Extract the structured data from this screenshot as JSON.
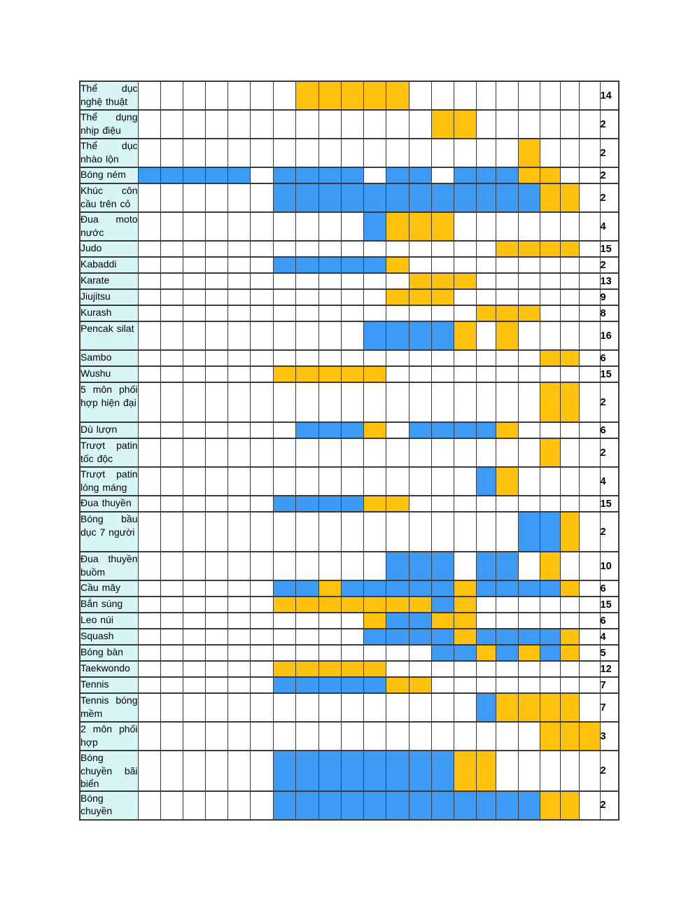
{
  "colors": {
    "blue": "#3e9bf5",
    "yellow": "#ffc20d",
    "label_bg": "#d9f6f6",
    "border": "#3b3b3b",
    "page_bg": "#ffffff"
  },
  "table": {
    "day_columns": 21,
    "pattern_legend": {
      "b": "blue",
      "y": "yellow",
      ".": "empty"
    },
    "rows": [
      {
        "label": "Thể dục nghệ thuật",
        "count": "14",
        "lines": 2,
        "pattern": ".......yyyyy........."
      },
      {
        "label": "Thể dụng nhịp điệu",
        "count": "2",
        "lines": 2,
        "pattern": ".............yy......"
      },
      {
        "label": "Thể dục nhào lộn",
        "count": "2",
        "lines": 2,
        "pattern": ".................y..."
      },
      {
        "label": "Bóng ném",
        "count": "2",
        "lines": 1,
        "pattern": "bbbbb.bbbb.bb.bbbyy.."
      },
      {
        "label": "Khúc côn cầu trên cỏ",
        "count": "2",
        "lines": 2,
        "pattern": "......bbbbbbbbbbbbyy."
      },
      {
        "label": "Đua moto nước",
        "count": "4",
        "lines": 2,
        "pattern": "..........byyy......."
      },
      {
        "label": "Judo",
        "count": "15",
        "lines": 1,
        "pattern": "................yyyy."
      },
      {
        "label": "Kabaddi",
        "count": "2",
        "lines": 1,
        "pattern": "......bbbbby........."
      },
      {
        "label": "Karate",
        "count": "13",
        "lines": 1,
        "pattern": "............yyy......"
      },
      {
        "label": "Jiujitsu",
        "count": "9",
        "lines": 1,
        "pattern": "...........yyy......."
      },
      {
        "label": "Kurash",
        "count": "8",
        "lines": 1,
        "pattern": "...............yyy..."
      },
      {
        "label": "Pencak silat",
        "count": "16",
        "lines": 2,
        "pattern": "..........bbbby.y...."
      },
      {
        "label": "Sambo",
        "count": "6",
        "lines": 1,
        "pattern": "..................yy."
      },
      {
        "label": "Wushu",
        "count": "15",
        "lines": 1,
        "pattern": "......yyyyy.........."
      },
      {
        "label": "5 môn phối hợp hiện đại",
        "count": "2",
        "lines": 3,
        "pattern": "..................yy."
      },
      {
        "label": "Dù lượn",
        "count": "6",
        "lines": 1,
        "pattern": ".......bbby.bbbby...."
      },
      {
        "label": "Trượt patin tốc độc",
        "count": "2",
        "lines": 2,
        "pattern": "..................y.."
      },
      {
        "label": "Trượt patin lòng máng",
        "count": "4",
        "lines": 2,
        "pattern": "...............by...."
      },
      {
        "label": "Đua thuyền",
        "count": "15",
        "lines": 1,
        "pattern": "......bbbbyy........."
      },
      {
        "label": "Bóng bầu dục 7 người",
        "count": "2",
        "lines": 3,
        "pattern": ".................bby."
      },
      {
        "label": "Đua thuyền buồm",
        "count": "10",
        "lines": 2,
        "pattern": "...........bbb.bb.y.."
      },
      {
        "label": "Cầu mây",
        "count": "6",
        "lines": 1,
        "pattern": "......bbybbbbbybbbby."
      },
      {
        "label": "Bắn súng",
        "count": "15",
        "lines": 1,
        "pattern": "......yyyyyyyby......"
      },
      {
        "label": "Leo núi",
        "count": "6",
        "lines": 1,
        "pattern": "..........ybbyy......"
      },
      {
        "label": "Squash",
        "count": "4",
        "lines": 1,
        "pattern": "..........bbbbybbbby."
      },
      {
        "label": "Bóng bàn",
        "count": "5",
        "lines": 1,
        "pattern": ".............bbybyby."
      },
      {
        "label": "Taekwondo",
        "count": "12",
        "lines": 1,
        "pattern": "......yyyyy.........."
      },
      {
        "label": "Tennis",
        "count": "7",
        "lines": 1,
        "pattern": "......bbbbbyy........"
      },
      {
        "label": "Tennis bóng mềm",
        "count": "7",
        "lines": 2,
        "pattern": "...............byyyy."
      },
      {
        "label": "2 môn phối hợp",
        "count": "3",
        "lines": 2,
        "pattern": "..................yyy"
      },
      {
        "label": "Bóng chuyền bãi biển",
        "count": "2",
        "lines": 3,
        "pattern": "......bbbbbbbbyy....."
      },
      {
        "label": "Bóng chuyền",
        "count": "2",
        "lines": 2,
        "pattern": "......bbbbbbbbbbbbyy."
      }
    ]
  }
}
